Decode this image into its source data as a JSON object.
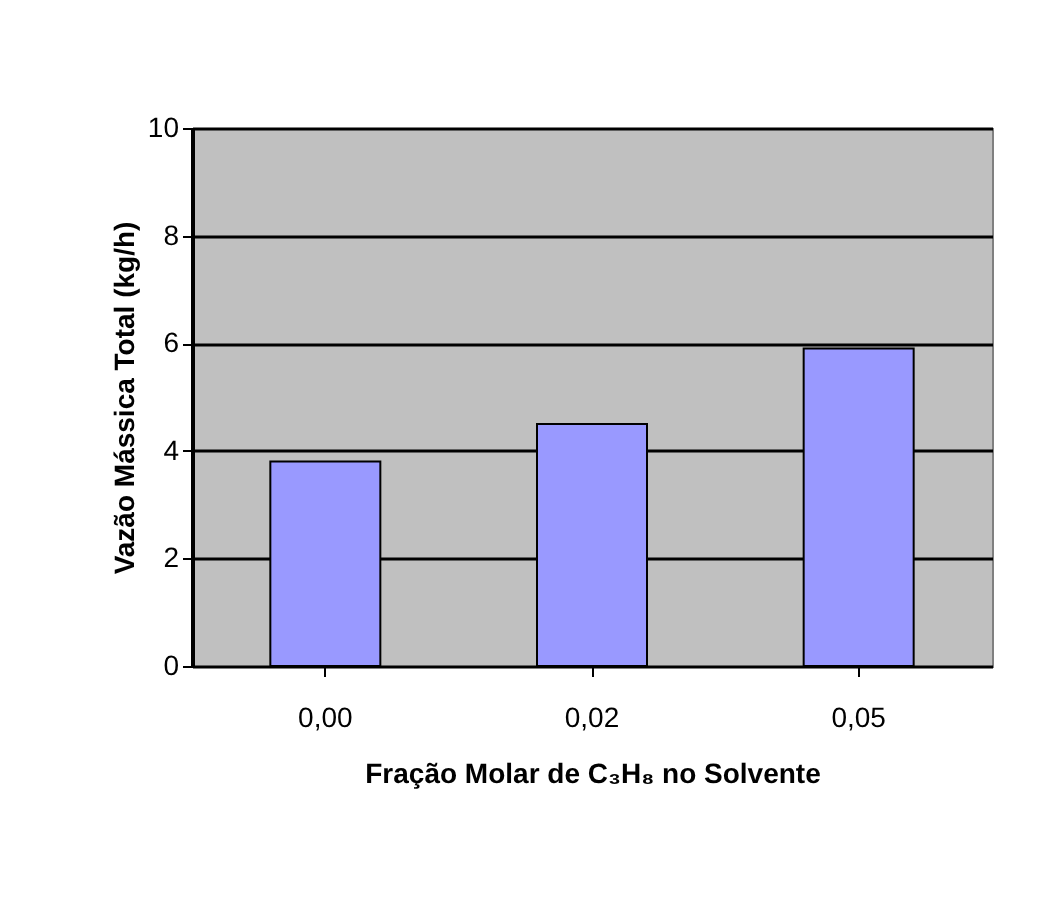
{
  "chart_data": {
    "type": "bar",
    "xlabel": "Fração Molar de C₃H₈ no Solvente",
    "ylabel": "Vazão Mássica Total (kg/h)",
    "categories": [
      "0,00",
      "0,02",
      "0,05"
    ],
    "values": [
      3.8,
      4.5,
      5.9
    ],
    "color": "#9999ff",
    "ylim": [
      0,
      10
    ],
    "yticks": [
      0,
      2,
      4,
      6,
      8,
      10
    ],
    "grid": "y"
  }
}
